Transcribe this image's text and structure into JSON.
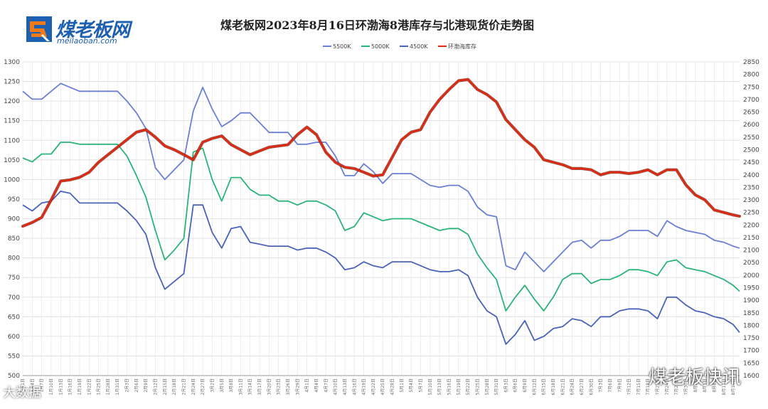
{
  "brand": {
    "logo_text": "煤老板网",
    "logo_sub": "meilaoban.com",
    "watermark": "煤老板快讯",
    "watermark_left": "大数据"
  },
  "chart_data": {
    "type": "line",
    "title": "煤老板网2023年8月16日环渤海8港库存与北港现货价走势图",
    "ylim": [
      500,
      1300
    ],
    "y2lim": [
      1600,
      2850
    ],
    "yticks": [
      500,
      550,
      600,
      650,
      700,
      750,
      800,
      850,
      900,
      950,
      1000,
      1050,
      1100,
      1150,
      1200,
      1250,
      1300
    ],
    "y2ticks": [
      1600,
      1650,
      1700,
      1750,
      1800,
      1850,
      1900,
      1950,
      2000,
      2050,
      2100,
      2150,
      2200,
      2250,
      2300,
      2350,
      2400,
      2450,
      2500,
      2550,
      2600,
      2650,
      2700,
      2750,
      2800,
      2850
    ],
    "grid": true,
    "legend_position": "top-center",
    "x_start": "2023-01-01",
    "x_end": "2023-08-16",
    "xlabels": [
      "1月1日",
      "1月4日",
      "1月7日",
      "1月10日",
      "1月13日",
      "1月16日",
      "1月19日",
      "1月22日",
      "1月25日",
      "1月28日",
      "1月31日",
      "2月3日",
      "2月6日",
      "2月9日",
      "2月12日",
      "2月15日",
      "2月18日",
      "2月21日",
      "2月24日",
      "2月27日",
      "3月2日",
      "3月5日",
      "3月8日",
      "3月11日",
      "3月14日",
      "3月17日",
      "3月20日",
      "3月23日",
      "3月26日",
      "3月29日",
      "4月1日",
      "4月4日",
      "4月7日",
      "4月10日",
      "4月13日",
      "4月16日",
      "4月19日",
      "4月22日",
      "4月25日",
      "4月28日",
      "5月1日",
      "5月4日",
      "5月7日",
      "5月10日",
      "5月13日",
      "5月16日",
      "5月19日",
      "5月22日",
      "5月25日",
      "5月28日",
      "5月31日",
      "6月3日",
      "6月6日",
      "6月9日",
      "6月12日",
      "6月15日",
      "6月18日",
      "6月21日",
      "6月24日",
      "6月27日",
      "6月30日",
      "7月3日",
      "7月6日",
      "7月9日",
      "7月12日",
      "7月15日",
      "7月18日",
      "7月21日",
      "7月24日",
      "7月27日",
      "7月30日",
      "8月2日",
      "8月5日",
      "8月8日",
      "8月11日",
      "8月14日"
    ],
    "series": [
      {
        "name": "5500K",
        "axis": "left",
        "color": "#6a7fd6",
        "x": [
          "2023-01-01",
          "2023-01-04",
          "2023-01-07",
          "2023-01-10",
          "2023-01-13",
          "2023-01-16",
          "2023-01-19",
          "2023-01-22",
          "2023-01-25",
          "2023-01-28",
          "2023-01-31",
          "2023-02-03",
          "2023-02-06",
          "2023-02-09",
          "2023-02-12",
          "2023-02-15",
          "2023-02-18",
          "2023-02-21",
          "2023-02-24",
          "2023-02-27",
          "2023-03-02",
          "2023-03-05",
          "2023-03-08",
          "2023-03-11",
          "2023-03-14",
          "2023-03-17",
          "2023-03-20",
          "2023-03-23",
          "2023-03-26",
          "2023-03-29",
          "2023-04-01",
          "2023-04-04",
          "2023-04-07",
          "2023-04-10",
          "2023-04-13",
          "2023-04-16",
          "2023-04-19",
          "2023-04-22",
          "2023-04-25",
          "2023-04-28",
          "2023-05-01",
          "2023-05-04",
          "2023-05-07",
          "2023-05-10",
          "2023-05-13",
          "2023-05-16",
          "2023-05-19",
          "2023-05-22",
          "2023-05-25",
          "2023-05-28",
          "2023-05-31",
          "2023-06-03",
          "2023-06-06",
          "2023-06-09",
          "2023-06-12",
          "2023-06-15",
          "2023-06-18",
          "2023-06-21",
          "2023-06-24",
          "2023-06-27",
          "2023-06-30",
          "2023-07-03",
          "2023-07-06",
          "2023-07-09",
          "2023-07-12",
          "2023-07-15",
          "2023-07-18",
          "2023-07-21",
          "2023-07-24",
          "2023-07-27",
          "2023-07-30",
          "2023-08-02",
          "2023-08-05",
          "2023-08-08",
          "2023-08-11",
          "2023-08-14",
          "2023-08-16"
        ],
        "values": [
          1225,
          1205,
          1205,
          1225,
          1245,
          1235,
          1225,
          1225,
          1225,
          1225,
          1225,
          1200,
          1170,
          1130,
          1030,
          1000,
          1025,
          1050,
          1175,
          1235,
          1180,
          1135,
          1150,
          1170,
          1170,
          1145,
          1120,
          1120,
          1120,
          1090,
          1090,
          1095,
          1095,
          1060,
          1010,
          1010,
          1040,
          1020,
          990,
          1015,
          1015,
          1015,
          1000,
          985,
          980,
          985,
          985,
          970,
          930,
          910,
          905,
          780,
          770,
          815,
          790,
          765,
          790,
          815,
          840,
          845,
          825,
          845,
          845,
          855,
          870,
          870,
          870,
          855,
          895,
          880,
          870,
          865,
          860,
          845,
          840,
          830,
          825
        ]
      },
      {
        "name": "5000K",
        "axis": "left",
        "color": "#2bb37a",
        "x": [
          "2023-01-01",
          "2023-01-04",
          "2023-01-07",
          "2023-01-10",
          "2023-01-13",
          "2023-01-16",
          "2023-01-19",
          "2023-01-22",
          "2023-01-25",
          "2023-01-28",
          "2023-01-31",
          "2023-02-03",
          "2023-02-06",
          "2023-02-09",
          "2023-02-12",
          "2023-02-15",
          "2023-02-18",
          "2023-02-21",
          "2023-02-24",
          "2023-02-27",
          "2023-03-02",
          "2023-03-05",
          "2023-03-08",
          "2023-03-11",
          "2023-03-14",
          "2023-03-17",
          "2023-03-20",
          "2023-03-23",
          "2023-03-26",
          "2023-03-29",
          "2023-04-01",
          "2023-04-04",
          "2023-04-07",
          "2023-04-10",
          "2023-04-13",
          "2023-04-16",
          "2023-04-19",
          "2023-04-22",
          "2023-04-25",
          "2023-04-28",
          "2023-05-01",
          "2023-05-04",
          "2023-05-07",
          "2023-05-10",
          "2023-05-13",
          "2023-05-16",
          "2023-05-19",
          "2023-05-22",
          "2023-05-25",
          "2023-05-28",
          "2023-05-31",
          "2023-06-03",
          "2023-06-06",
          "2023-06-09",
          "2023-06-12",
          "2023-06-15",
          "2023-06-18",
          "2023-06-21",
          "2023-06-24",
          "2023-06-27",
          "2023-06-30",
          "2023-07-03",
          "2023-07-06",
          "2023-07-09",
          "2023-07-12",
          "2023-07-15",
          "2023-07-18",
          "2023-07-21",
          "2023-07-24",
          "2023-07-27",
          "2023-07-30",
          "2023-08-02",
          "2023-08-05",
          "2023-08-08",
          "2023-08-11",
          "2023-08-14",
          "2023-08-16"
        ],
        "values": [
          1055,
          1045,
          1065,
          1065,
          1095,
          1095,
          1090,
          1090,
          1090,
          1090,
          1090,
          1060,
          1010,
          955,
          870,
          795,
          820,
          850,
          1070,
          1080,
          1000,
          945,
          1005,
          1005,
          975,
          960,
          960,
          945,
          945,
          935,
          945,
          945,
          935,
          920,
          870,
          880,
          915,
          905,
          895,
          900,
          900,
          900,
          890,
          880,
          870,
          875,
          875,
          860,
          810,
          775,
          745,
          665,
          700,
          730,
          695,
          665,
          700,
          745,
          760,
          760,
          735,
          745,
          745,
          755,
          770,
          770,
          765,
          755,
          790,
          795,
          775,
          770,
          765,
          755,
          745,
          730,
          715
        ]
      },
      {
        "name": "4500K",
        "axis": "left",
        "color": "#4a62b8",
        "x": [
          "2023-01-01",
          "2023-01-04",
          "2023-01-07",
          "2023-01-10",
          "2023-01-13",
          "2023-01-16",
          "2023-01-19",
          "2023-01-22",
          "2023-01-25",
          "2023-01-28",
          "2023-01-31",
          "2023-02-03",
          "2023-02-06",
          "2023-02-09",
          "2023-02-12",
          "2023-02-15",
          "2023-02-18",
          "2023-02-21",
          "2023-02-24",
          "2023-02-27",
          "2023-03-02",
          "2023-03-05",
          "2023-03-08",
          "2023-03-11",
          "2023-03-14",
          "2023-03-17",
          "2023-03-20",
          "2023-03-23",
          "2023-03-26",
          "2023-03-29",
          "2023-04-01",
          "2023-04-04",
          "2023-04-07",
          "2023-04-10",
          "2023-04-13",
          "2023-04-16",
          "2023-04-19",
          "2023-04-22",
          "2023-04-25",
          "2023-04-28",
          "2023-05-01",
          "2023-05-04",
          "2023-05-07",
          "2023-05-10",
          "2023-05-13",
          "2023-05-16",
          "2023-05-19",
          "2023-05-22",
          "2023-05-25",
          "2023-05-28",
          "2023-05-31",
          "2023-06-03",
          "2023-06-06",
          "2023-06-09",
          "2023-06-12",
          "2023-06-15",
          "2023-06-18",
          "2023-06-21",
          "2023-06-24",
          "2023-06-27",
          "2023-06-30",
          "2023-07-03",
          "2023-07-06",
          "2023-07-09",
          "2023-07-12",
          "2023-07-15",
          "2023-07-18",
          "2023-07-21",
          "2023-07-24",
          "2023-07-27",
          "2023-07-30",
          "2023-08-02",
          "2023-08-05",
          "2023-08-08",
          "2023-08-11",
          "2023-08-14",
          "2023-08-16"
        ],
        "values": [
          935,
          920,
          940,
          945,
          970,
          965,
          940,
          940,
          940,
          940,
          940,
          920,
          895,
          860,
          775,
          720,
          740,
          760,
          935,
          935,
          865,
          825,
          875,
          880,
          840,
          835,
          830,
          830,
          830,
          820,
          825,
          825,
          815,
          800,
          770,
          775,
          790,
          780,
          775,
          790,
          790,
          790,
          780,
          770,
          765,
          765,
          770,
          755,
          700,
          665,
          650,
          580,
          605,
          640,
          590,
          600,
          620,
          625,
          645,
          640,
          625,
          650,
          650,
          665,
          670,
          670,
          665,
          645,
          700,
          700,
          680,
          665,
          660,
          650,
          645,
          630,
          610
        ]
      },
      {
        "name": "环渤海库存",
        "axis": "right",
        "color": "#e02a10",
        "x": [
          "2023-01-01",
          "2023-01-04",
          "2023-01-07",
          "2023-01-10",
          "2023-01-13",
          "2023-01-16",
          "2023-01-19",
          "2023-01-22",
          "2023-01-25",
          "2023-01-28",
          "2023-01-31",
          "2023-02-03",
          "2023-02-06",
          "2023-02-09",
          "2023-02-12",
          "2023-02-15",
          "2023-02-18",
          "2023-02-21",
          "2023-02-24",
          "2023-02-27",
          "2023-03-02",
          "2023-03-05",
          "2023-03-08",
          "2023-03-11",
          "2023-03-14",
          "2023-03-17",
          "2023-03-20",
          "2023-03-23",
          "2023-03-26",
          "2023-03-29",
          "2023-04-01",
          "2023-04-04",
          "2023-04-07",
          "2023-04-10",
          "2023-04-13",
          "2023-04-16",
          "2023-04-19",
          "2023-04-22",
          "2023-04-25",
          "2023-04-28",
          "2023-05-01",
          "2023-05-04",
          "2023-05-07",
          "2023-05-10",
          "2023-05-13",
          "2023-05-16",
          "2023-05-19",
          "2023-05-22",
          "2023-05-25",
          "2023-05-28",
          "2023-05-31",
          "2023-06-03",
          "2023-06-06",
          "2023-06-09",
          "2023-06-12",
          "2023-06-15",
          "2023-06-18",
          "2023-06-21",
          "2023-06-24",
          "2023-06-27",
          "2023-06-30",
          "2023-07-03",
          "2023-07-06",
          "2023-07-09",
          "2023-07-12",
          "2023-07-15",
          "2023-07-18",
          "2023-07-21",
          "2023-07-24",
          "2023-07-27",
          "2023-07-30",
          "2023-08-02",
          "2023-08-05",
          "2023-08-08",
          "2023-08-11",
          "2023-08-14",
          "2023-08-16"
        ],
        "values": [
          2195,
          2210,
          2230,
          2300,
          2375,
          2380,
          2390,
          2410,
          2450,
          2480,
          2510,
          2540,
          2570,
          2580,
          2550,
          2515,
          2500,
          2480,
          2460,
          2530,
          2545,
          2555,
          2520,
          2500,
          2480,
          2495,
          2510,
          2515,
          2520,
          2560,
          2590,
          2560,
          2490,
          2450,
          2430,
          2425,
          2410,
          2395,
          2400,
          2470,
          2540,
          2570,
          2580,
          2650,
          2700,
          2740,
          2775,
          2780,
          2740,
          2720,
          2690,
          2620,
          2580,
          2540,
          2510,
          2460,
          2450,
          2440,
          2425,
          2425,
          2420,
          2400,
          2410,
          2410,
          2405,
          2410,
          2420,
          2400,
          2420,
          2420,
          2360,
          2320,
          2300,
          2260,
          2250,
          2240,
          2235
        ]
      }
    ]
  }
}
